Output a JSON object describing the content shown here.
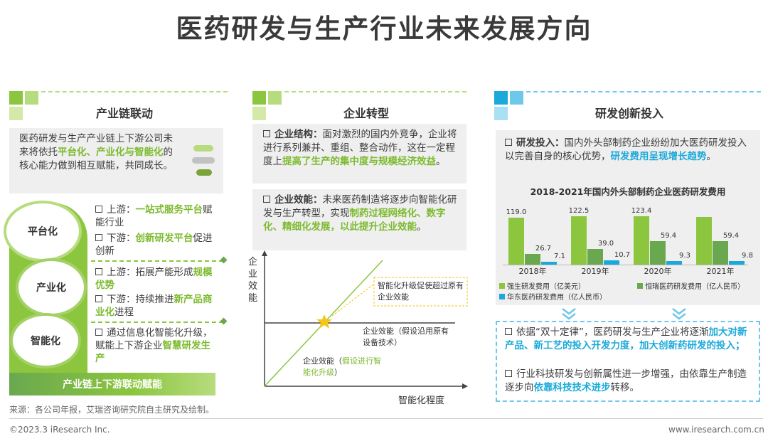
{
  "title": "医药研发与生产行业未来发展方向",
  "colors": {
    "green": "#8cc63f",
    "light_green": "#d4e9a8",
    "blue": "#1aa9da",
    "light_blue": "#a9e0f4"
  },
  "col1": {
    "heading": "产业链联动",
    "intro_parts": [
      "医药研发与生产产业链上下游公司未来将依托",
      "平台化、产业化与智能化",
      "的核心能力做到相互赋能，共同成长。"
    ],
    "bubbles": [
      "平台化",
      "产业化",
      "智能化"
    ],
    "platform": {
      "up_pre": "上游：",
      "up_hl": "一站式服务平台",
      "up_post": "赋能行业",
      "down_pre": "下游：",
      "down_hl": "创新研发平台",
      "down_post": "促进创新"
    },
    "industry": {
      "up_pre": "上游：拓展产能形成",
      "up_hl": "规模优势",
      "down_pre": "下游：持续推进",
      "down_hl": "新产品商业化",
      "down_post": "进程"
    },
    "intel": {
      "pre": "通过信息化智能化升级，赋能上下游企业",
      "hl": "智慧研发生产"
    },
    "banner": "产业链上下游联动赋能"
  },
  "col2": {
    "heading": "企业转型",
    "p1": {
      "label": "企业结构：",
      "text": "面对激烈的国内外竞争，企业将进行系列兼并、重组、整合动作，这在一定程度上",
      "hl": "提高了生产的集中度与规模经济效益",
      "end": "。"
    },
    "p2": {
      "label": "企业效能：",
      "text": "未来医药制造将逐步向智能化研发与生产转型，实现",
      "hl": "制药过程网络化、数字化、精细化发展，以此提升企业效能",
      "end": "。"
    },
    "chart": {
      "ylabel": "企业效能",
      "xlabel": "智能化程度",
      "callout": "智能化升级促使超过原有企业效能",
      "flat_label": "企业效能（假设沿用原有设备技术）",
      "rise_label_pre": "企业效能（",
      "rise_label_hl": "假设进行智能化升级",
      "rise_label_post": "）"
    }
  },
  "col3": {
    "heading": "研发创新投入",
    "p1": {
      "label": "研发投入：",
      "text": "国内外头部制药企业纷纷加大医药研发投入以完善自身的核心优势，",
      "hl": "研发费用呈现增长趋势",
      "end": "。"
    },
    "chart_title": "2018-2021年国内外头部制药企业医药研发费用",
    "legend": [
      "强生研发费用（亿美元）",
      "恒瑞医药研发费用（亿人民币）",
      "华东医药研发费用（亿人民币）"
    ],
    "p2": {
      "pre": "依据“双十定律”，医药研发与生产企业将逐渐",
      "hl": "加大对新产品、新工艺的投入开发力度，加大创新药研发的投入；"
    },
    "p3": {
      "pre": "行业科技研发与创新属性进一步增强，由依靠生产制造逐步向",
      "hl": "依靠科技技术进步",
      "post": "转移。"
    }
  },
  "chart_data": {
    "type": "bar",
    "title": "2018-2021年国内外头部制药企业医药研发费用",
    "categories": [
      "2018年",
      "2019年",
      "2020年",
      "2021年"
    ],
    "series": [
      {
        "name": "强生研发费用（亿美元）",
        "values": [
          119.0,
          122.5,
          123.4,
          null
        ],
        "color": "#8cc63f"
      },
      {
        "name": "恒瑞医药研发费用（亿人民币）",
        "values": [
          26.7,
          39.0,
          59.4,
          59.4
        ],
        "color": "#6aa84f"
      },
      {
        "name": "华东医药研发费用（亿人民币）",
        "values": [
          7.1,
          10.7,
          9.3,
          9.8
        ],
        "color": "#1aa9da"
      }
    ],
    "labels": [
      [
        "119.0",
        "26.7",
        "7.1"
      ],
      [
        "122.5",
        "39.0",
        "10.7"
      ],
      [
        "123.4",
        "59.4",
        "9.3"
      ],
      [
        "",
        "59.4",
        "9.8"
      ]
    ],
    "legend_position": "bottom",
    "grid": false
  },
  "source": "来源：各公司年报，艾瑞咨询研究院自主研究及绘制。",
  "footer_left": "©2023.3 iResearch Inc.",
  "footer_right": "www.iresearch.com.cn"
}
